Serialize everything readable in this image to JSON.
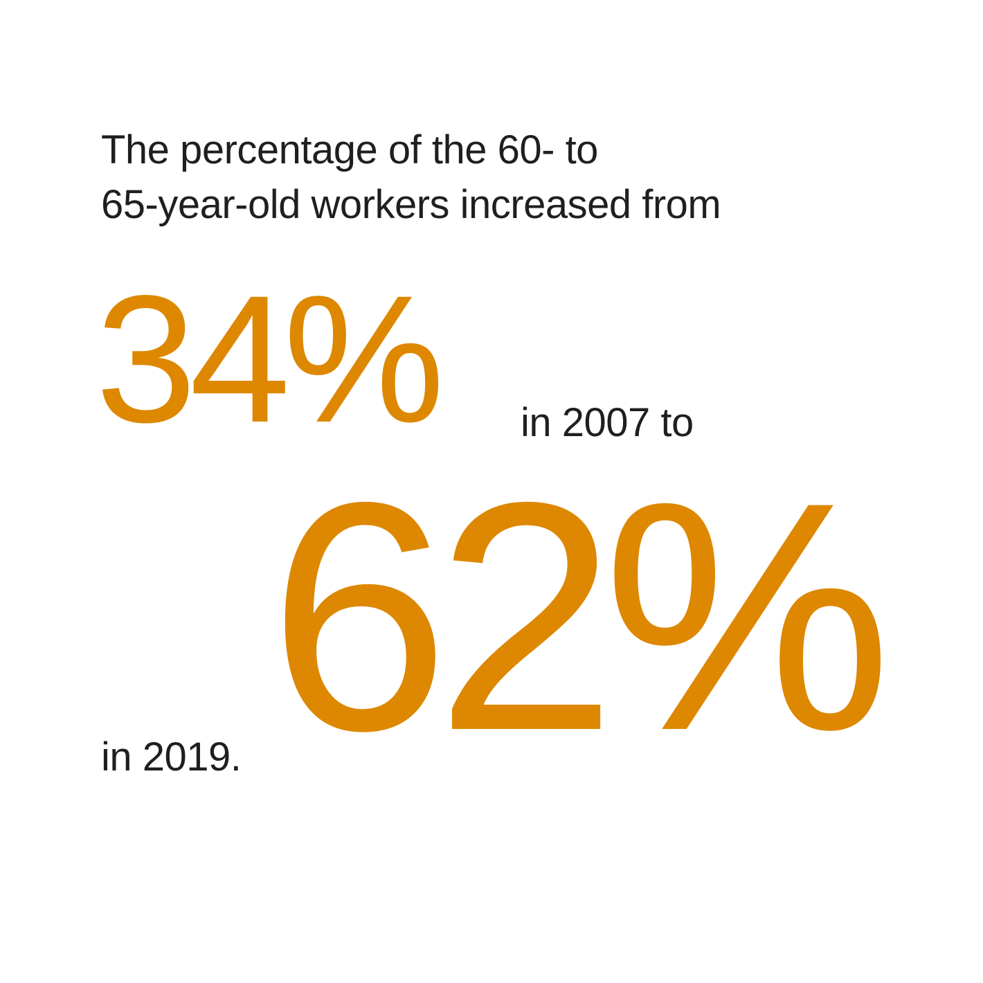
{
  "statement": {
    "intro_line_1": "The percentage of the 60- to",
    "intro_line_2": "65-year-old workers increased from",
    "value_start": "34%",
    "connector": "in 2007 to",
    "value_end": "62%",
    "closing": "in 2019."
  },
  "colors": {
    "highlight": "#dd8800",
    "text": "#1f1f1f",
    "background": "#ffffff"
  }
}
